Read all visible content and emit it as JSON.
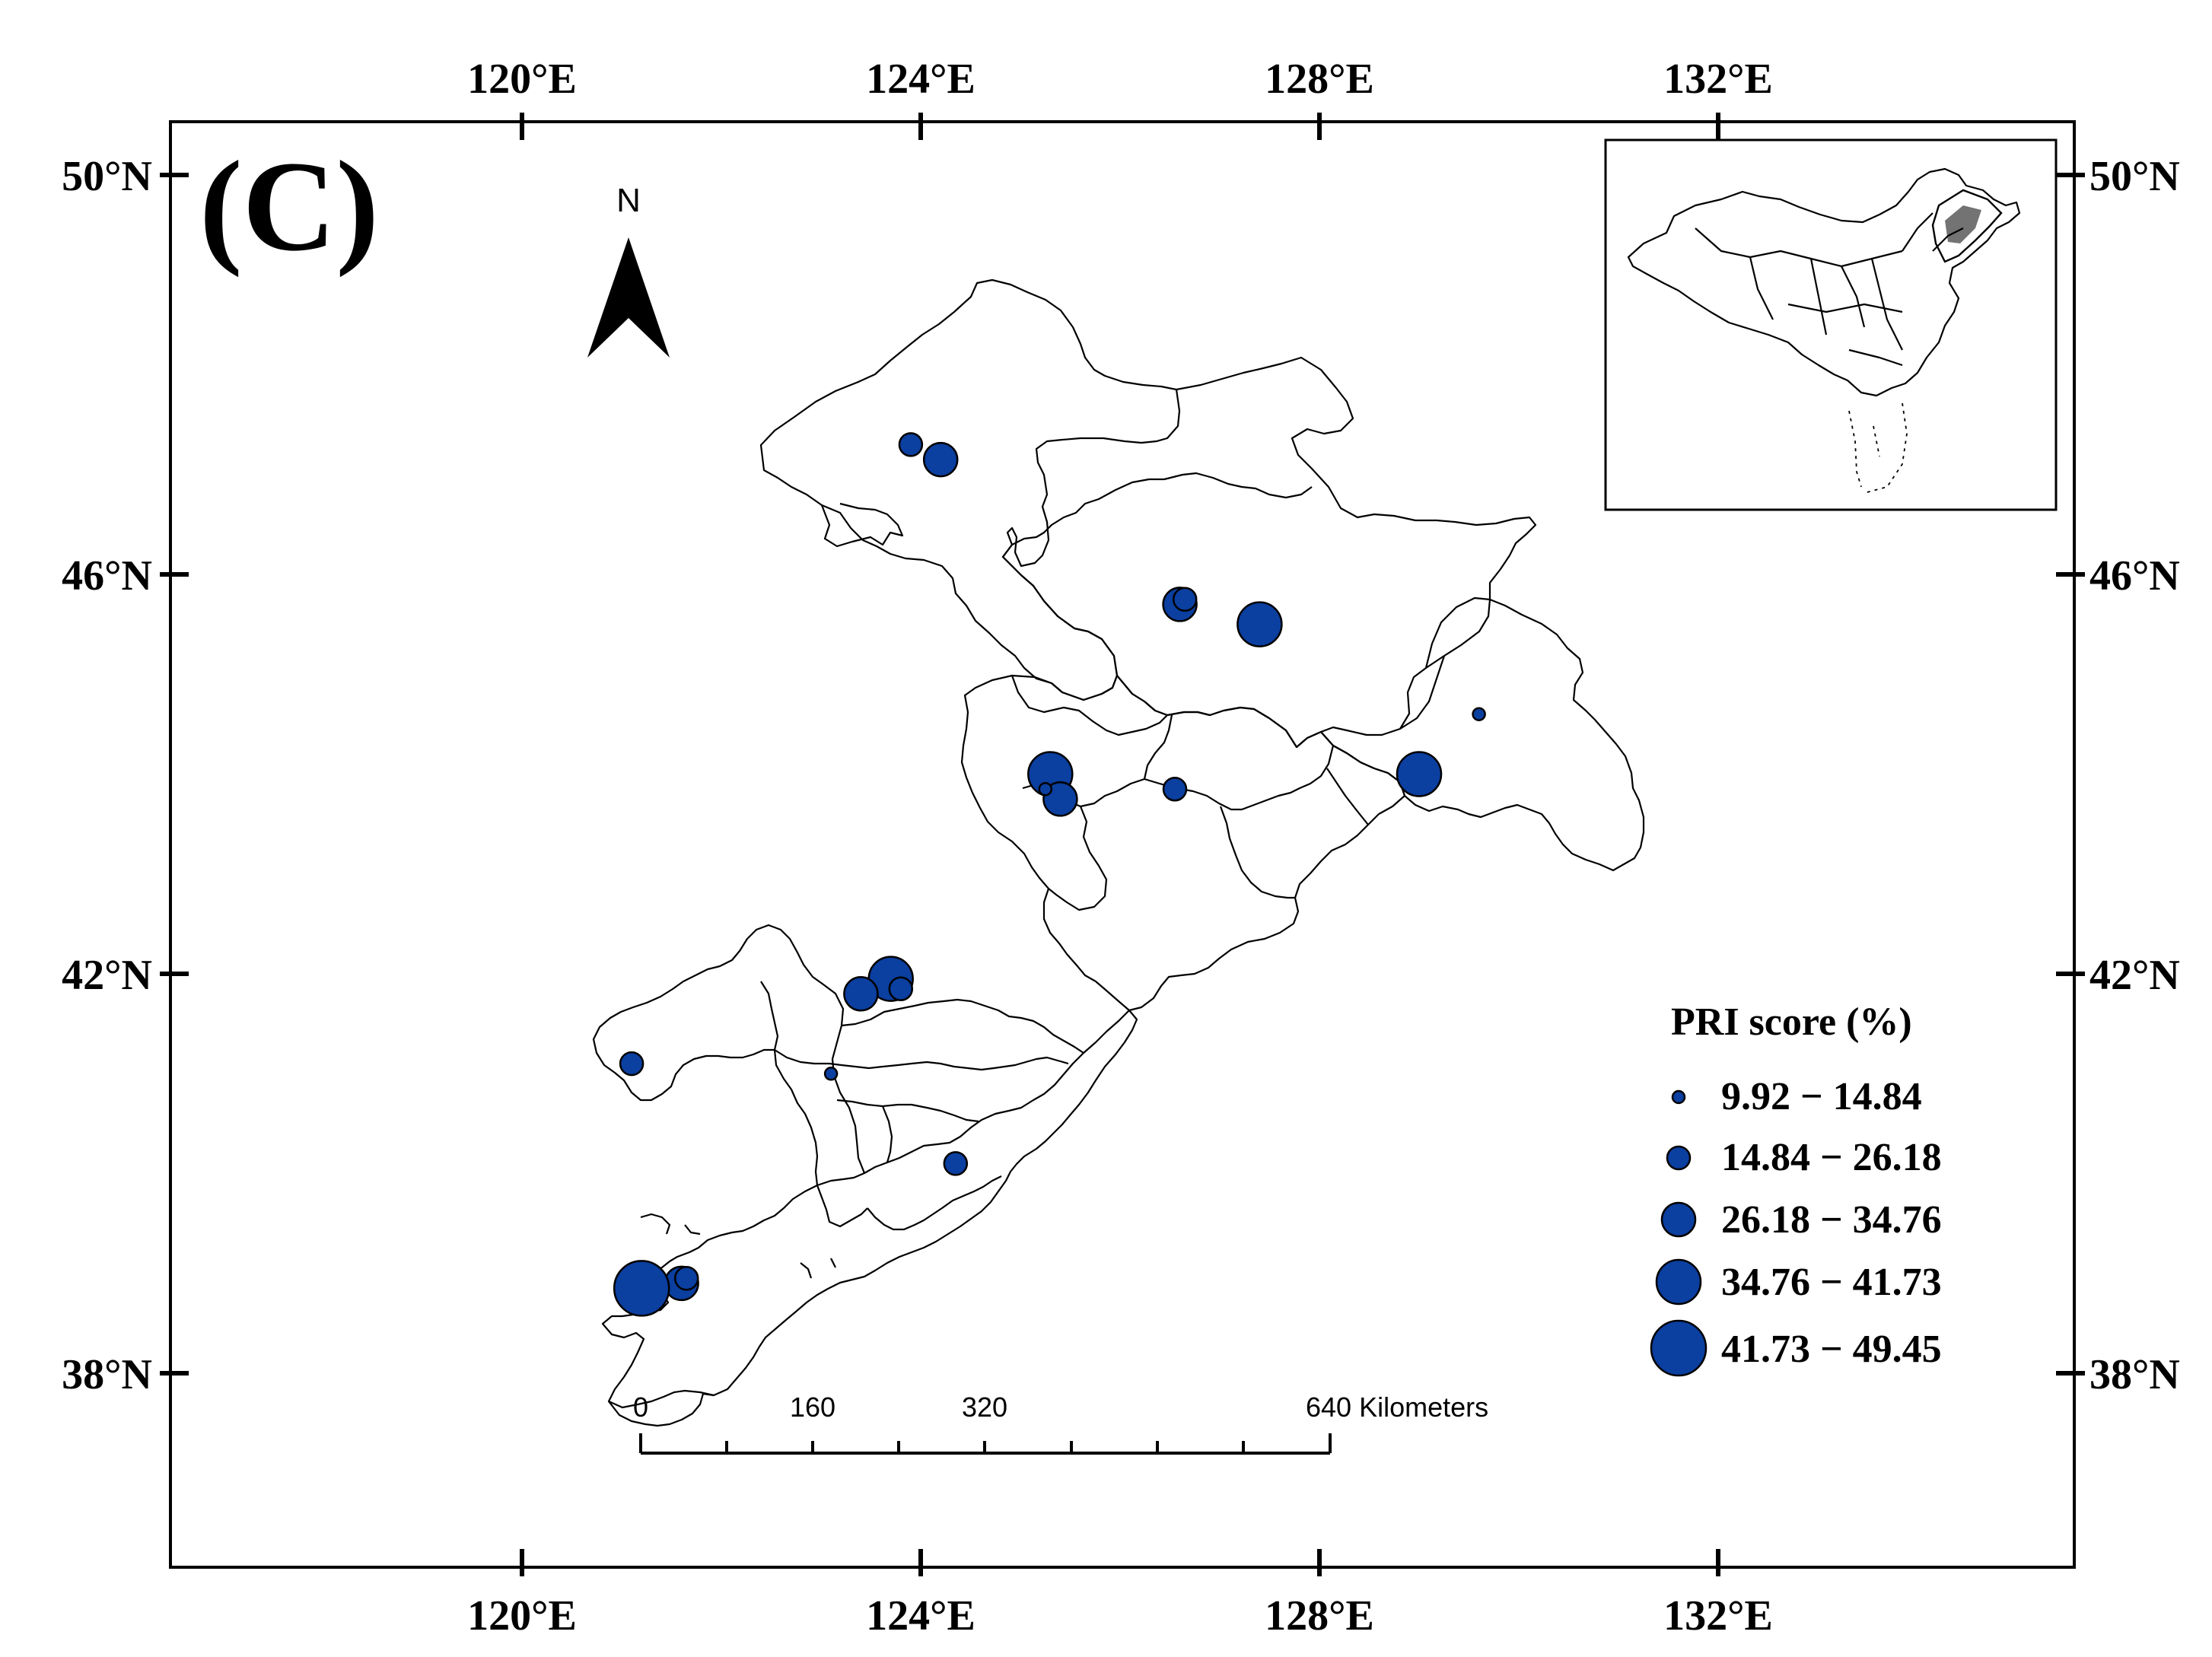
{
  "map": {
    "panel_label": "(C)",
    "north_label": "N",
    "lon_labels": [
      "120°E",
      "124°E",
      "128°E",
      "132°E"
    ],
    "lat_labels": [
      "50°N",
      "46°N",
      "42°N",
      "38°N"
    ],
    "legend": {
      "title": "PRI score (%)",
      "classes": [
        {
          "label": "9.92 − 14.84"
        },
        {
          "label": "14.84 − 26.18"
        },
        {
          "label": "26.18 − 34.76"
        },
        {
          "label": "34.76 − 41.73"
        },
        {
          "label": "41.73 − 49.45"
        }
      ]
    },
    "scale_bar": {
      "labels": [
        "0",
        "160",
        "320",
        "640 Kilometers"
      ]
    },
    "colors": {
      "site_fill": "#0b3fa0",
      "outline": "#000000"
    },
    "sites": [
      {
        "lon": 123.9,
        "lat": 47.3,
        "class": 2
      },
      {
        "lon": 124.2,
        "lat": 47.15,
        "class": 3
      },
      {
        "lon": 126.6,
        "lat": 45.7,
        "class": 3
      },
      {
        "lon": 126.65,
        "lat": 45.75,
        "class": 2
      },
      {
        "lon": 127.4,
        "lat": 45.5,
        "class": 4
      },
      {
        "lon": 129.6,
        "lat": 44.6,
        "class": 1
      },
      {
        "lon": 129.0,
        "lat": 44.0,
        "class": 4
      },
      {
        "lon": 125.3,
        "lat": 44.0,
        "class": 4
      },
      {
        "lon": 125.4,
        "lat": 43.75,
        "class": 3
      },
      {
        "lon": 125.25,
        "lat": 43.85,
        "class": 1
      },
      {
        "lon": 126.55,
        "lat": 43.85,
        "class": 2
      },
      {
        "lon": 123.7,
        "lat": 41.95,
        "class": 4
      },
      {
        "lon": 123.4,
        "lat": 41.8,
        "class": 3
      },
      {
        "lon": 123.8,
        "lat": 41.85,
        "class": 2
      },
      {
        "lon": 121.1,
        "lat": 41.1,
        "class": 2
      },
      {
        "lon": 123.1,
        "lat": 41.0,
        "class": 1
      },
      {
        "lon": 124.35,
        "lat": 40.1,
        "class": 2
      },
      {
        "lon": 121.6,
        "lat": 38.9,
        "class": 3
      },
      {
        "lon": 121.2,
        "lat": 38.85,
        "class": 5
      },
      {
        "lon": 121.65,
        "lat": 38.95,
        "class": 2
      }
    ]
  }
}
